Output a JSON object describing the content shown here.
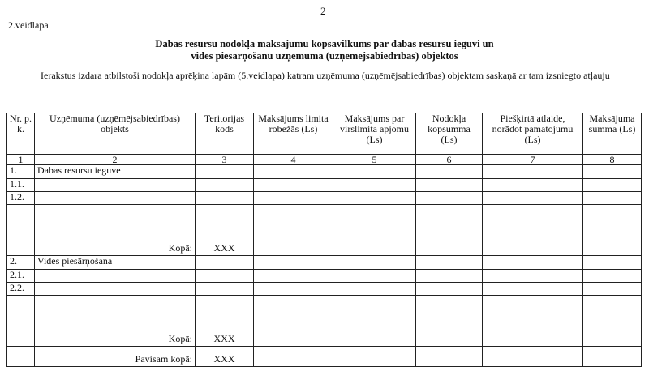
{
  "page_number": "2",
  "form_label": "2.veidlapa",
  "title_line1": "Dabas resursu nodokļa maksājumu kopsavilkums par dabas resursu ieguvi un",
  "title_line2": "vides piesārņošanu uzņēmuma (uzņēmējsabiedrības) objektos",
  "intro": "Ierakstus izdara atbilstoši nodokļa aprēķina lapām (5.veidlapa) katram uzņēmuma (uzņēmējsabiedrības) objektam saskaņā ar tam izsniegto atļauju",
  "table": {
    "headers": [
      "Nr. p. k.",
      "Uzņēmuma (uzņēmējsabiedrības) objekts",
      "Teritorijas kods",
      "Maksājums limita robežās (Ls)",
      "Maksājums par virslimita apjomu (Ls)",
      "Nodokļa kopsumma (Ls)",
      "Piešķirtā atlaide, norādot pamatojumu (Ls)",
      "Maksājuma summa (Ls)"
    ],
    "numbers": [
      "1",
      "2",
      "3",
      "4",
      "5",
      "6",
      "7",
      "8"
    ],
    "section1": {
      "nr": "1.",
      "name": "Dabas resursu ieguve",
      "rows": [
        "1.1.",
        "1.2."
      ],
      "total_label": "Kopā:",
      "total_code": "XXX"
    },
    "section2": {
      "nr": "2.",
      "name": "Vides piesārņošana",
      "rows": [
        "2.1.",
        "2.2."
      ],
      "total_label": "Kopā:",
      "total_code": "XXX"
    },
    "grand_total_label": "Pavisam kopā:",
    "grand_total_code": "XXX"
  }
}
